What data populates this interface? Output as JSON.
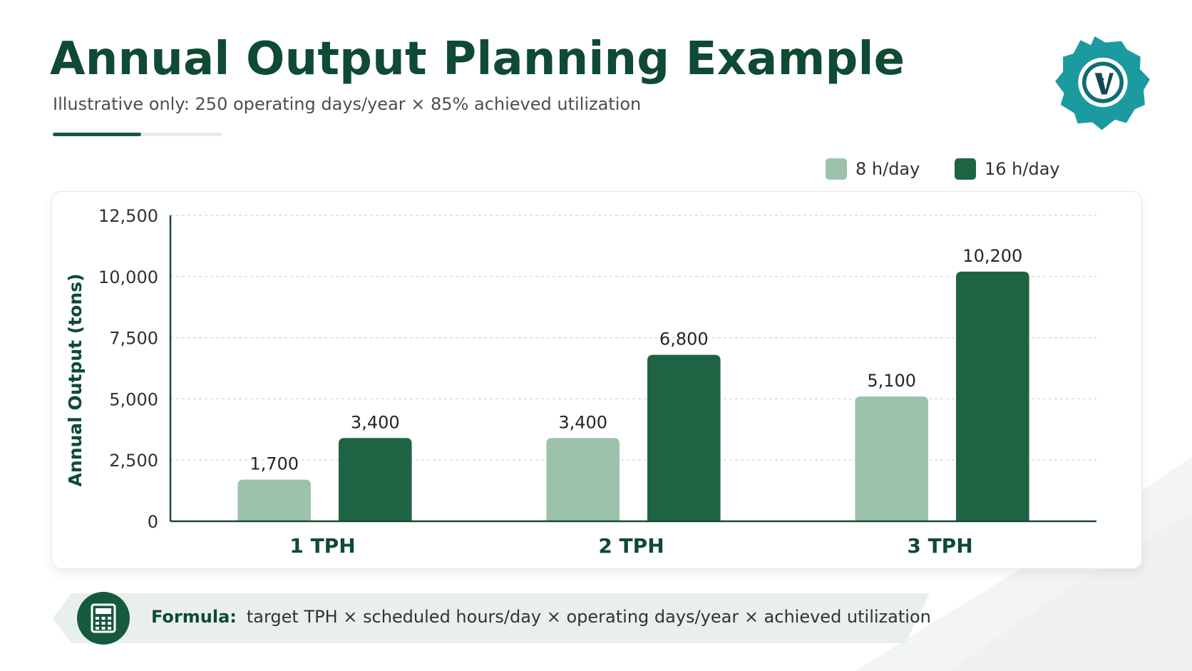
{
  "header": {
    "title": "Annual Output Planning Example",
    "subtitle": "Illustrative only: 250 operating days/year × 85% achieved utilization"
  },
  "legend": {
    "items": [
      {
        "label": "8 h/day",
        "color": "#9dc2ac"
      },
      {
        "label": "16 h/day",
        "color": "#1e6444"
      }
    ]
  },
  "chart_data": {
    "type": "bar",
    "categories": [
      "1 TPH",
      "2 TPH",
      "3 TPH"
    ],
    "series": [
      {
        "name": "8 h/day",
        "values": [
          1700,
          3400,
          5100
        ],
        "color": "#9dc2ac"
      },
      {
        "name": "16 h/day",
        "values": [
          3400,
          6800,
          10200
        ],
        "color": "#1e6444"
      }
    ],
    "data_labels": [
      [
        "1,700",
        "3,400",
        "5,100"
      ],
      [
        "3,400",
        "6,800",
        "10,200"
      ]
    ],
    "ylabel": "Annual Output (tons)",
    "xlabel": "",
    "ylim": [
      0,
      12500
    ],
    "yticks": [
      0,
      2500,
      5000,
      7500,
      10000,
      12500
    ],
    "ytick_labels": [
      "0",
      "2,500",
      "5,000",
      "7,500",
      "10,000",
      "12,500"
    ],
    "grid": true,
    "legend_position": "top-right"
  },
  "formula": {
    "label": "Formula:",
    "text": "target TPH × scheduled hours/day × operating days/year × achieved utilization",
    "icon": "calculator-icon"
  },
  "logo": {
    "icon": "gear-logo-icon"
  }
}
